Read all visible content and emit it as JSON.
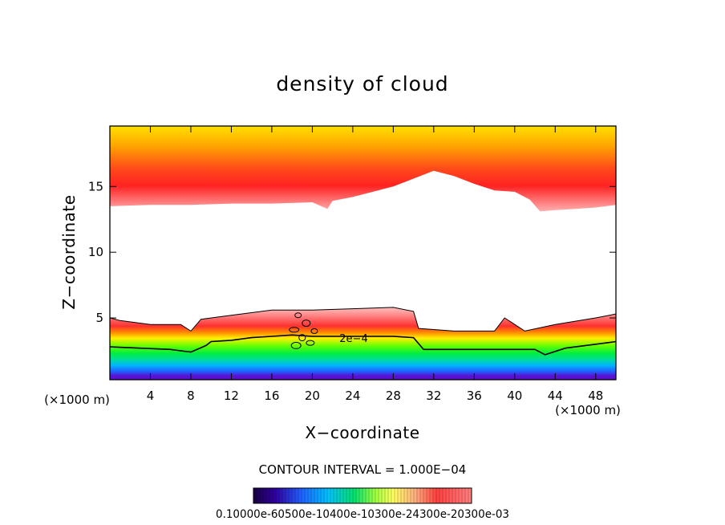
{
  "chart_data": {
    "type": "heatmap",
    "title": "density of cloud",
    "xlabel": "X−coordinate",
    "ylabel": "Z−coordinate",
    "x_unit_label": "(×1000 m)",
    "y_unit_label": "(×1000 m)",
    "x_range": [
      0,
      50
    ],
    "y_range": [
      0.3,
      19.6
    ],
    "x_ticks": [
      4,
      8,
      12,
      16,
      20,
      24,
      28,
      32,
      36,
      40,
      44,
      48
    ],
    "y_ticks": [
      5,
      10,
      15
    ],
    "contour_interval_label": "CONTOUR INTERVAL = 1.000E−04",
    "contour_label": "2e−4",
    "colorbar_label_text": "0.10000e-60500e-10400e-10300e-24300e-20300e-03",
    "upper_cloud_base_km": [
      [
        0,
        13.5
      ],
      [
        4,
        13.6
      ],
      [
        8,
        13.6
      ],
      [
        12,
        13.7
      ],
      [
        16,
        13.7
      ],
      [
        20,
        13.8
      ],
      [
        21.5,
        13.3
      ],
      [
        22,
        13.9
      ],
      [
        24,
        14.2
      ],
      [
        28,
        15.0
      ],
      [
        30,
        15.6
      ],
      [
        32,
        16.2
      ],
      [
        34,
        15.8
      ],
      [
        36,
        15.2
      ],
      [
        38,
        14.7
      ],
      [
        40,
        14.6
      ],
      [
        41.5,
        14.0
      ],
      [
        42.5,
        13.1
      ],
      [
        44,
        13.2
      ],
      [
        46,
        13.3
      ],
      [
        48,
        13.4
      ],
      [
        50,
        13.6
      ]
    ],
    "lower_cloud_top_km": [
      [
        0,
        5.0
      ],
      [
        1,
        4.8
      ],
      [
        4,
        4.5
      ],
      [
        7,
        4.5
      ],
      [
        8,
        4.0
      ],
      [
        9,
        4.9
      ],
      [
        12,
        5.2
      ],
      [
        14,
        5.4
      ],
      [
        16,
        5.6
      ],
      [
        18,
        5.6
      ],
      [
        20,
        5.6
      ],
      [
        24,
        5.7
      ],
      [
        28,
        5.8
      ],
      [
        30,
        5.5
      ],
      [
        30.5,
        4.2
      ],
      [
        34,
        4.0
      ],
      [
        38,
        4.0
      ],
      [
        39,
        5.0
      ],
      [
        41,
        4.0
      ],
      [
        44,
        4.5
      ],
      [
        48,
        5.0
      ],
      [
        50,
        5.3
      ]
    ],
    "contour_2e-4_km": [
      [
        0,
        2.8
      ],
      [
        3,
        2.7
      ],
      [
        6,
        2.6
      ],
      [
        7,
        2.5
      ],
      [
        8,
        2.4
      ],
      [
        9.5,
        2.9
      ],
      [
        10,
        3.2
      ],
      [
        12,
        3.3
      ],
      [
        14,
        3.5
      ],
      [
        16,
        3.6
      ],
      [
        18,
        3.7
      ],
      [
        20,
        3.6
      ],
      [
        24,
        3.6
      ],
      [
        28,
        3.6
      ],
      [
        30,
        3.5
      ],
      [
        31,
        2.6
      ],
      [
        34,
        2.6
      ],
      [
        38,
        2.6
      ],
      [
        42,
        2.6
      ],
      [
        43,
        2.2
      ],
      [
        45,
        2.7
      ],
      [
        48,
        3.0
      ],
      [
        50,
        3.2
      ]
    ]
  }
}
